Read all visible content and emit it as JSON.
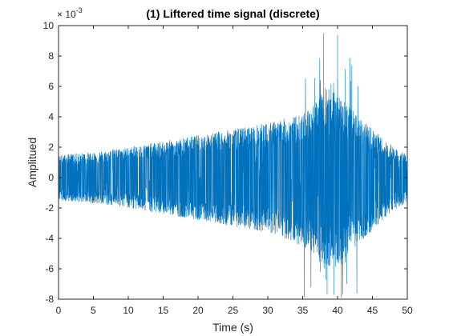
{
  "chart_data": {
    "type": "line",
    "title": "(1) Liftered time signal (discrete)",
    "xlabel": "Time (s)",
    "ylabel": "Amplitued",
    "xlim": [
      0,
      50
    ],
    "ylim": [
      -8,
      10
    ],
    "y_exponent_label": "× 10",
    "y_exponent_power": "-3",
    "x_ticks": [
      "0",
      "5",
      "10",
      "15",
      "20",
      "25",
      "30",
      "35",
      "40",
      "45",
      "50"
    ],
    "y_ticks": [
      "-8",
      "-6",
      "-4",
      "-2",
      "0",
      "2",
      "4",
      "6",
      "8",
      "10"
    ],
    "grid": false,
    "series_color": "#0072BD",
    "envelope_description_values": {
      "time": [
        0,
        5,
        10,
        15,
        20,
        25,
        30,
        35,
        37,
        38,
        40,
        42,
        45,
        48,
        50
      ],
      "upper": [
        1.5,
        1.7,
        2.0,
        2.4,
        2.8,
        3.2,
        3.6,
        4.2,
        5.0,
        6.0,
        5.5,
        4.5,
        3.2,
        2.0,
        1.5
      ],
      "lower": [
        -1.5,
        -1.7,
        -2.0,
        -2.4,
        -2.8,
        -3.2,
        -3.6,
        -4.5,
        -5.2,
        -6.0,
        -5.8,
        -4.8,
        -3.5,
        -2.2,
        -1.6
      ]
    },
    "peaks": [
      {
        "x": 38.0,
        "y": 9.5
      },
      {
        "x": 40.0,
        "y": 9.4
      },
      {
        "x": 38.5,
        "y": -7.7
      },
      {
        "x": 40.5,
        "y": -7.9
      }
    ]
  }
}
